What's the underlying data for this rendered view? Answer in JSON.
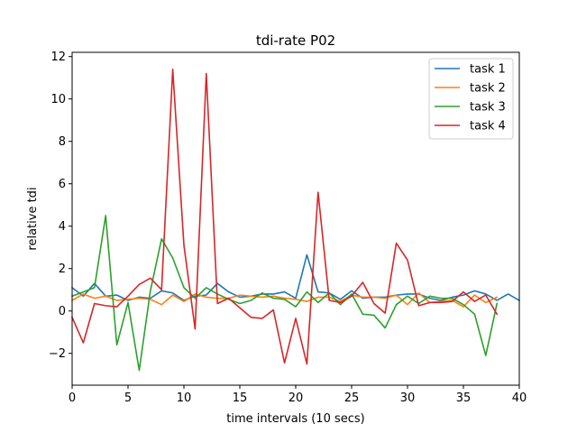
{
  "chart_data": {
    "type": "line",
    "title": "tdi-rate P02",
    "xlabel": "time intervals (10 secs)",
    "ylabel": "relative tdi",
    "xlim": [
      0,
      40
    ],
    "ylim": [
      -3.5,
      12.2
    ],
    "xticks": [
      0,
      5,
      10,
      15,
      20,
      25,
      30,
      35,
      40
    ],
    "yticks": [
      -2,
      0,
      2,
      4,
      6,
      8,
      10,
      12
    ],
    "grid": false,
    "legend_position": "top-right",
    "series": [
      {
        "name": "task 1",
        "color": "#1f77b4",
        "x": [
          0,
          1,
          2,
          3,
          4,
          5,
          6,
          7,
          8,
          9,
          10,
          11,
          12,
          13,
          14,
          15,
          16,
          17,
          18,
          19,
          20,
          21,
          22,
          23,
          24,
          25,
          26,
          27,
          28,
          29,
          30,
          31,
          32,
          33,
          34,
          35,
          36,
          37,
          38,
          39,
          40
        ],
        "values": [
          1.1,
          0.7,
          1.3,
          0.7,
          0.75,
          0.5,
          0.65,
          0.6,
          0.95,
          0.85,
          0.5,
          0.7,
          0.75,
          1.3,
          0.9,
          0.65,
          0.7,
          0.8,
          0.8,
          0.9,
          0.6,
          2.65,
          0.9,
          0.85,
          0.55,
          0.95,
          0.6,
          0.65,
          0.65,
          0.75,
          0.8,
          0.8,
          0.6,
          0.5,
          0.65,
          0.75,
          0.95,
          0.8,
          0.5,
          0.8,
          0.5
        ]
      },
      {
        "name": "task 2",
        "color": "#ff7f0e",
        "x": [
          0,
          1,
          2,
          3,
          4,
          5,
          6,
          7,
          8,
          9,
          10,
          11,
          12,
          13,
          14,
          15,
          16,
          17,
          18,
          19,
          20,
          21,
          22,
          23,
          24,
          25,
          26,
          27,
          28,
          29,
          30,
          31,
          32,
          33,
          34,
          35,
          36,
          37,
          38
        ],
        "values": [
          0.5,
          0.8,
          0.6,
          0.7,
          0.5,
          0.55,
          0.6,
          0.55,
          0.3,
          0.75,
          0.45,
          0.8,
          0.65,
          0.6,
          0.6,
          0.75,
          0.7,
          0.65,
          0.7,
          0.6,
          0.55,
          0.45,
          0.65,
          0.65,
          0.45,
          0.75,
          0.65,
          0.65,
          0.6,
          0.75,
          0.3,
          0.85,
          0.4,
          0.45,
          0.5,
          0.2,
          0.75,
          0.4,
          0.65
        ]
      },
      {
        "name": "task 3",
        "color": "#2ca02c",
        "x": [
          0,
          1,
          2,
          3,
          4,
          5,
          6,
          7,
          8,
          9,
          10,
          11,
          12,
          13,
          14,
          15,
          16,
          17,
          18,
          19,
          20,
          21,
          22,
          23,
          24,
          25,
          26,
          27,
          28,
          29,
          30,
          31,
          32,
          33,
          34,
          35,
          36,
          37,
          38
        ],
        "values": [
          0.7,
          0.9,
          1.1,
          4.5,
          -1.6,
          0.4,
          -2.8,
          0.95,
          3.4,
          2.5,
          1.1,
          0.6,
          1.1,
          0.8,
          0.55,
          0.35,
          0.5,
          0.85,
          0.6,
          0.55,
          0.2,
          0.9,
          0.4,
          0.85,
          0.3,
          0.8,
          -0.15,
          -0.2,
          -0.8,
          0.3,
          0.7,
          0.35,
          0.7,
          0.6,
          0.6,
          0.3,
          -0.15,
          -2.1,
          0.35
        ]
      },
      {
        "name": "task 4",
        "color": "#d62728",
        "x": [
          0,
          1,
          2,
          3,
          4,
          5,
          6,
          7,
          8,
          9,
          10,
          11,
          12,
          13,
          14,
          15,
          16,
          17,
          18,
          19,
          20,
          21,
          22,
          23,
          24,
          25,
          26,
          27,
          28,
          29,
          30,
          31,
          32,
          33,
          34,
          35,
          36,
          37,
          38
        ],
        "values": [
          -0.3,
          -1.5,
          0.35,
          0.25,
          0.2,
          0.7,
          1.25,
          1.55,
          1.0,
          11.4,
          3.1,
          -0.85,
          11.2,
          0.35,
          0.6,
          0.15,
          -0.3,
          -0.35,
          0.05,
          -2.45,
          -0.35,
          -2.5,
          5.6,
          0.5,
          0.4,
          0.7,
          1.35,
          0.35,
          -0.1,
          3.2,
          2.4,
          0.25,
          0.4,
          0.4,
          0.45,
          0.9,
          0.45,
          0.75,
          -0.15
        ]
      }
    ]
  }
}
